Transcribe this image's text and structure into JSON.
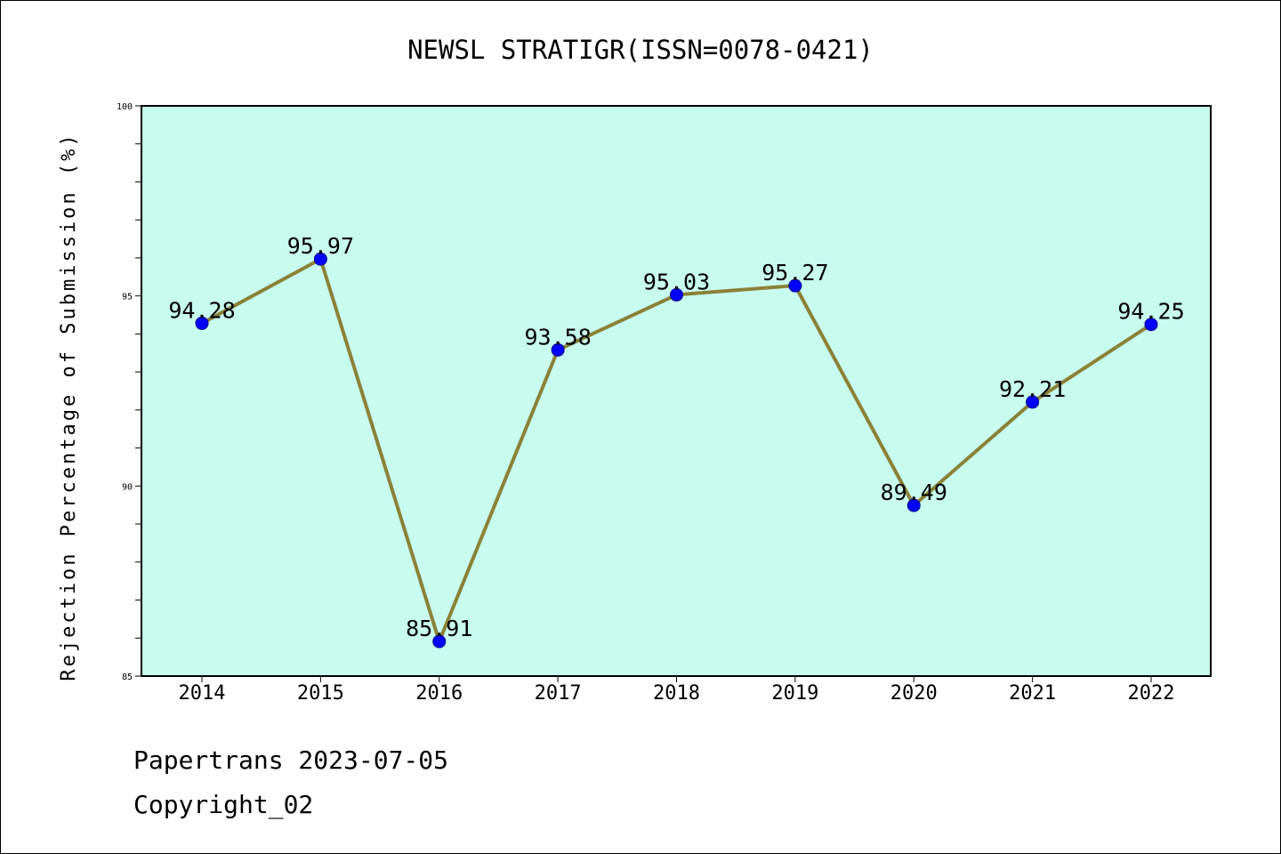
{
  "chart_data": {
    "type": "line",
    "title": "NEWSL STRATIGR(ISSN=0078-0421)",
    "xlabel": "",
    "ylabel": "Rejection Percentage of Submission (%)",
    "categories": [
      "2014",
      "2015",
      "2016",
      "2017",
      "2018",
      "2019",
      "2020",
      "2021",
      "2022"
    ],
    "values": [
      94.28,
      95.97,
      85.91,
      93.58,
      95.03,
      95.27,
      89.49,
      92.21,
      94.25
    ],
    "value_labels": [
      "94.28",
      "95.97",
      "85.91",
      "93.58",
      "95.03",
      "95.27",
      "89.49",
      "92.21",
      "94.25"
    ],
    "ylim": [
      85,
      100
    ],
    "yticks": [
      85,
      90,
      95,
      100
    ],
    "grid": false,
    "plot_background": "#c8fcee",
    "line_color": "#8b8139",
    "marker_color": "#0000ff"
  },
  "footer": {
    "line1": "Papertrans 2023-07-05",
    "line2": "Copyright_02"
  }
}
